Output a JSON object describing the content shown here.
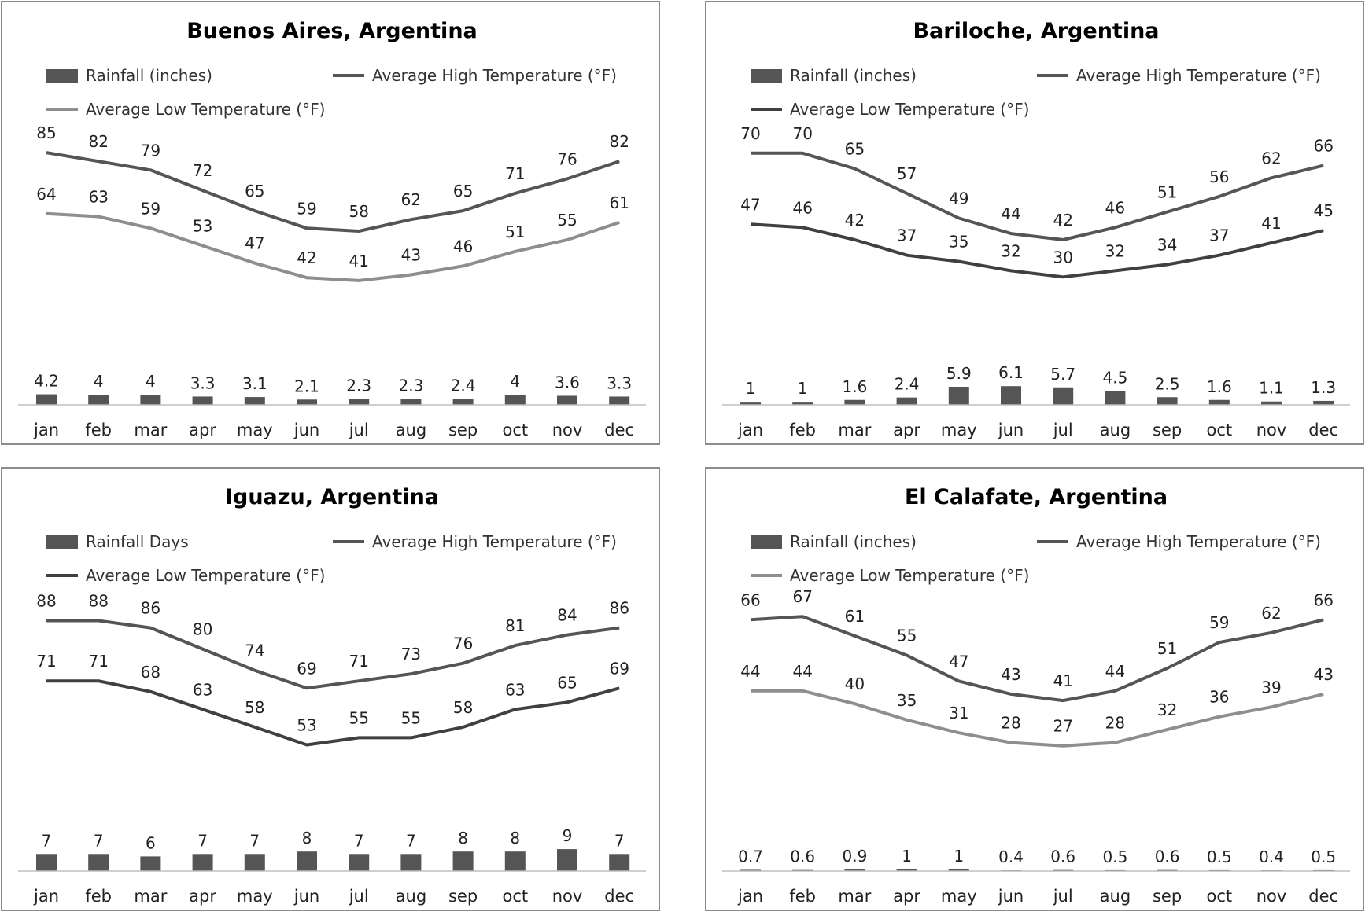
{
  "colors": {
    "bar": "#555555",
    "high_line": "#555555",
    "low_line_light": "#8e8e8e",
    "low_line_dark": "#404040",
    "axis": "#bfbfbf",
    "border": "#8c8c8c"
  },
  "chart_data": [
    {
      "type": "bar",
      "title": "Buenos Aires, Argentina",
      "categories": [
        "jan",
        "feb",
        "mar",
        "apr",
        "may",
        "jun",
        "jul",
        "aug",
        "sep",
        "oct",
        "nov",
        "dec"
      ],
      "series": [
        {
          "name": "Rainfall (inches)",
          "type": "bar",
          "values": [
            4.2,
            4,
            4,
            3.3,
            3.1,
            2.1,
            2.3,
            2.3,
            2.4,
            4,
            3.6,
            3.3
          ]
        },
        {
          "name": "Average High Temperature (°F)",
          "type": "line",
          "values": [
            85,
            82,
            79,
            72,
            65,
            59,
            58,
            62,
            65,
            71,
            76,
            82
          ]
        },
        {
          "name": "Average Low Temperature (°F)",
          "type": "line",
          "values": [
            64,
            63,
            59,
            53,
            47,
            42,
            41,
            43,
            46,
            51,
            55,
            61
          ]
        }
      ],
      "grid": false,
      "legend_position": "top"
    },
    {
      "type": "bar",
      "title": "Bariloche, Argentina",
      "categories": [
        "jan",
        "feb",
        "mar",
        "apr",
        "may",
        "jun",
        "jul",
        "aug",
        "sep",
        "oct",
        "nov",
        "dec"
      ],
      "series": [
        {
          "name": "Rainfall (inches)",
          "type": "bar",
          "values": [
            1,
            1,
            1.6,
            2.4,
            5.9,
            6.1,
            5.7,
            4.5,
            2.5,
            1.6,
            1.1,
            1.3
          ]
        },
        {
          "name": "Average High Temperature (°F)",
          "type": "line",
          "values": [
            70,
            70,
            65,
            57,
            49,
            44,
            42,
            46,
            51,
            56,
            62,
            66
          ]
        },
        {
          "name": "Average Low Temperature (°F)",
          "type": "line",
          "values": [
            47,
            46,
            42,
            37,
            35,
            32,
            30,
            32,
            34,
            37,
            41,
            45
          ]
        }
      ],
      "grid": false,
      "legend_position": "top"
    },
    {
      "type": "bar",
      "title": "Iguazu, Argentina",
      "categories": [
        "jan",
        "feb",
        "mar",
        "apr",
        "may",
        "jun",
        "jul",
        "aug",
        "sep",
        "oct",
        "nov",
        "dec"
      ],
      "series": [
        {
          "name": "Rainfall Days",
          "type": "bar",
          "values": [
            7,
            7,
            6,
            7,
            7,
            8,
            7,
            7,
            8,
            8,
            9,
            7
          ]
        },
        {
          "name": "Average High Temperature (°F)",
          "type": "line",
          "values": [
            88,
            88,
            86,
            80,
            74,
            69,
            71,
            73,
            76,
            81,
            84,
            86
          ]
        },
        {
          "name": "Average Low Temperature (°F)",
          "type": "line",
          "values": [
            71,
            71,
            68,
            63,
            58,
            53,
            55,
            55,
            58,
            63,
            65,
            69
          ]
        }
      ],
      "grid": false,
      "legend_position": "top"
    },
    {
      "type": "bar",
      "title": "El Calafate, Argentina",
      "categories": [
        "jan",
        "feb",
        "mar",
        "apr",
        "may",
        "jun",
        "jul",
        "aug",
        "sep",
        "oct",
        "nov",
        "dec"
      ],
      "series": [
        {
          "name": "Rainfall (inches)",
          "type": "bar",
          "values": [
            0.7,
            0.6,
            0.9,
            1,
            1,
            0.4,
            0.6,
            0.5,
            0.6,
            0.5,
            0.4,
            0.5
          ]
        },
        {
          "name": "Average High Temperature (°F)",
          "type": "line",
          "values": [
            66,
            67,
            61,
            55,
            47,
            43,
            41,
            44,
            51,
            59,
            62,
            66
          ]
        },
        {
          "name": "Average Low Temperature (°F)",
          "type": "line",
          "values": [
            44,
            44,
            40,
            35,
            31,
            28,
            27,
            28,
            32,
            36,
            39,
            43
          ]
        }
      ],
      "grid": false,
      "legend_position": "top"
    }
  ]
}
